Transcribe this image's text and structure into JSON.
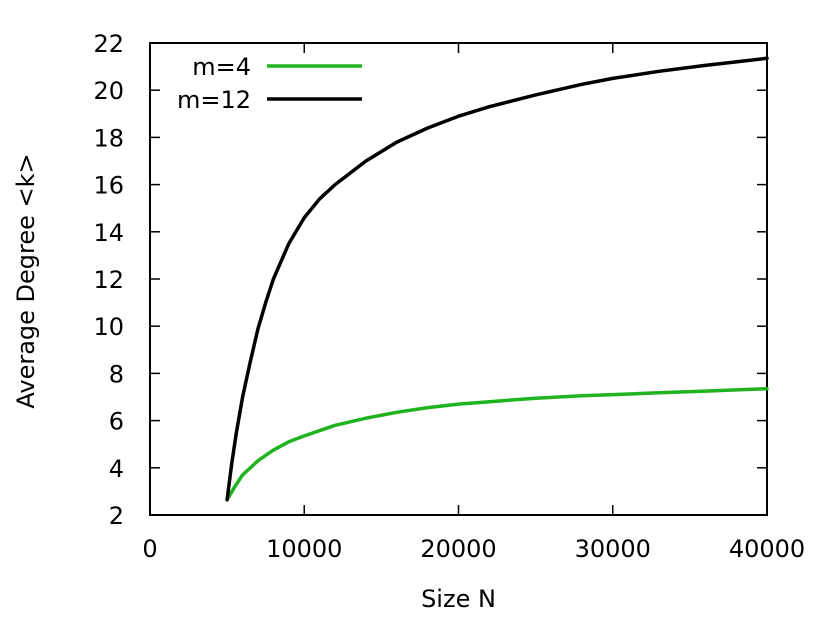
{
  "chart_data": {
    "type": "line",
    "title": "",
    "xlabel": "Size N",
    "ylabel": "Average Degree <k>",
    "xlim": [
      0,
      40000
    ],
    "ylim": [
      2,
      22
    ],
    "xticks": [
      0,
      10000,
      20000,
      30000,
      40000
    ],
    "yticks": [
      2,
      4,
      6,
      8,
      10,
      12,
      14,
      16,
      18,
      20,
      22
    ],
    "grid": false,
    "legend_position": "top-left",
    "series": [
      {
        "name": "m=4",
        "color": "#1fb31f",
        "x": [
          5000,
          5500,
          6000,
          7000,
          8000,
          9000,
          10000,
          12000,
          14000,
          16000,
          18000,
          20000,
          22000,
          25000,
          28000,
          30000,
          33000,
          36000,
          38000,
          40000
        ],
        "y": [
          2.65,
          3.2,
          3.7,
          4.3,
          4.75,
          5.1,
          5.35,
          5.8,
          6.1,
          6.35,
          6.55,
          6.7,
          6.8,
          6.95,
          7.05,
          7.1,
          7.18,
          7.25,
          7.3,
          7.35
        ]
      },
      {
        "name": "m=12",
        "color": "#000000",
        "x": [
          5000,
          5300,
          5600,
          6000,
          6500,
          7000,
          7500,
          8000,
          9000,
          10000,
          11000,
          12000,
          14000,
          16000,
          18000,
          20000,
          22000,
          25000,
          28000,
          30000,
          33000,
          36000,
          38000,
          40000
        ],
        "y": [
          2.65,
          4.2,
          5.5,
          7.0,
          8.5,
          9.9,
          11.0,
          12.0,
          13.5,
          14.6,
          15.4,
          16.0,
          17.0,
          17.8,
          18.4,
          18.9,
          19.3,
          19.8,
          20.25,
          20.5,
          20.8,
          21.05,
          21.2,
          21.35
        ]
      }
    ]
  }
}
